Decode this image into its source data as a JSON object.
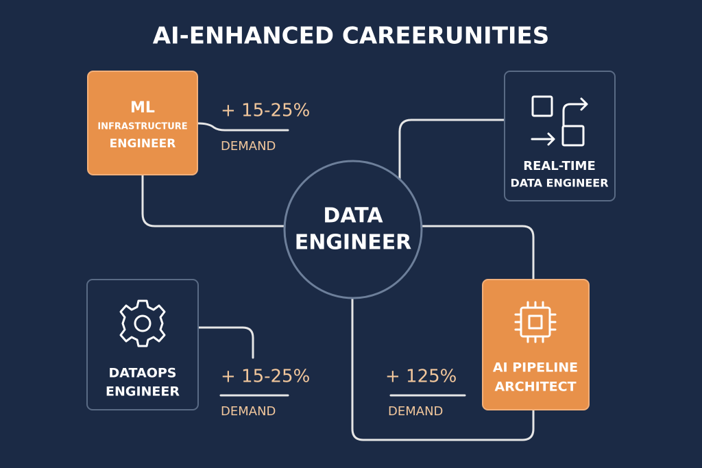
{
  "title": "AI-ENHANCED CAREERUNITIES",
  "center": {
    "lines": [
      "DATA",
      "ENGINEER"
    ]
  },
  "nodes": [
    {
      "lines": [
        "ML",
        "INFRASTRUCTURE",
        "ENGINEER"
      ]
    },
    {
      "lines": [
        "REAL-TIME",
        "DATA ENGINEER"
      ]
    },
    {
      "lines": [
        "DATAOPS",
        "ENGINEER"
      ]
    },
    {
      "lines": [
        "AI PIPELINE",
        "ARCHITECT"
      ]
    }
  ],
  "demand_labels": [
    {
      "change": "+ 15-25%",
      "label": "DEMAND"
    },
    {
      "change": "+ 15-25%",
      "label": "DEMAND"
    },
    {
      "change": "+ 125%",
      "label": "DEMAND"
    }
  ]
}
